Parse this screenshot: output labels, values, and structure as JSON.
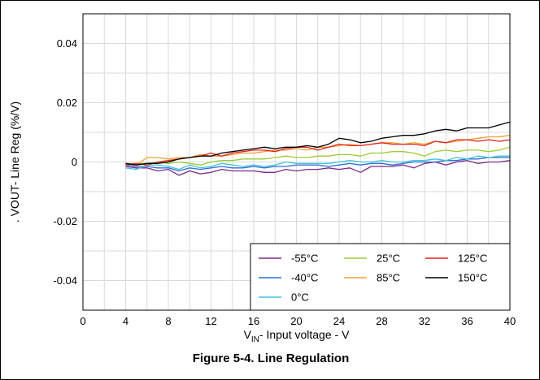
{
  "chart_data": {
    "type": "line",
    "title": "",
    "xlabel": {
      "main": "V",
      "sub": "IN",
      "rest": "- Input voltage - V"
    },
    "ylabel": ". VOUT- Line Reg (%/V)",
    "xlim": [
      0,
      40
    ],
    "ylim": [
      -0.05,
      0.05
    ],
    "xticks": [
      0,
      4,
      8,
      12,
      16,
      20,
      24,
      28,
      32,
      36,
      40
    ],
    "yticks": [
      -0.04,
      -0.02,
      0,
      0.02,
      0.04
    ],
    "ytick_labels": [
      "-0.04",
      "-0.02",
      "0",
      "0.02",
      "0.04"
    ],
    "grid": true,
    "legend_position": "bottom-right",
    "x": [
      4,
      5,
      6,
      7,
      8,
      9,
      10,
      11,
      12,
      13,
      14,
      15,
      16,
      17,
      18,
      19,
      20,
      21,
      22,
      23,
      24,
      25,
      26,
      27,
      28,
      29,
      30,
      31,
      32,
      33,
      34,
      35,
      36,
      37,
      38,
      39,
      40
    ],
    "series": [
      {
        "name": "-55°C",
        "color": "#7b2a8c",
        "values": [
          -0.0015,
          -0.002,
          -0.002,
          -0.003,
          -0.0025,
          -0.0045,
          -0.003,
          -0.004,
          -0.0035,
          -0.0025,
          -0.003,
          -0.003,
          -0.003,
          -0.0035,
          -0.0035,
          -0.0025,
          -0.003,
          -0.0025,
          -0.0025,
          -0.002,
          -0.0025,
          -0.002,
          -0.0035,
          -0.0015,
          -0.0015,
          -0.0015,
          -0.001,
          -0.002,
          -0.0005,
          0.0,
          -0.001,
          0.0,
          0.0005,
          -0.0005,
          0.0,
          0.0,
          0.0005
        ]
      },
      {
        "name": "-40°C",
        "color": "#2f6fd6",
        "values": [
          -0.001,
          -0.0015,
          -0.0015,
          -0.002,
          -0.002,
          -0.003,
          -0.002,
          -0.0025,
          -0.002,
          -0.0015,
          -0.002,
          -0.002,
          -0.0015,
          -0.002,
          -0.0015,
          -0.0015,
          -0.001,
          -0.001,
          -0.001,
          -0.0015,
          -0.001,
          -0.0005,
          -0.001,
          -0.0005,
          -0.0005,
          -0.001,
          -0.0005,
          0.0,
          0.0,
          0.0,
          0.0005,
          0.0005,
          0.001,
          0.001,
          0.0015,
          0.0015,
          0.0015
        ]
      },
      {
        "name": "0°C",
        "color": "#3fc2d9",
        "values": [
          -0.002,
          -0.0025,
          -0.001,
          -0.001,
          -0.0015,
          -0.0025,
          -0.001,
          -0.002,
          -0.0015,
          -0.0005,
          -0.001,
          -0.0015,
          -0.001,
          -0.0015,
          -0.001,
          0.0,
          -0.0005,
          -0.0005,
          -0.0005,
          -0.0005,
          0.0,
          0.0005,
          0.0,
          0.0,
          0.0005,
          0.0,
          0.0,
          0.0005,
          0.0005,
          0.001,
          0.0005,
          0.0015,
          0.001,
          0.002,
          0.0015,
          0.002,
          0.002
        ]
      },
      {
        "name": "25°C",
        "color": "#9acd32",
        "values": [
          -0.0005,
          -0.0005,
          -0.0005,
          0.0,
          -0.0005,
          0.0,
          -0.0005,
          -0.001,
          0.0,
          0.0005,
          0.0005,
          0.001,
          0.001,
          0.001,
          0.0015,
          0.002,
          0.0015,
          0.0015,
          0.002,
          0.002,
          0.0025,
          0.0025,
          0.002,
          0.003,
          0.003,
          0.0035,
          0.0035,
          0.003,
          0.002,
          0.0035,
          0.004,
          0.0035,
          0.004,
          0.004,
          0.0035,
          0.004,
          0.005
        ]
      },
      {
        "name": "85°C",
        "color": "#f0a030",
        "values": [
          -0.0005,
          -0.001,
          0.0015,
          0.0015,
          0.001,
          0.0015,
          0.0015,
          0.0025,
          0.002,
          0.002,
          0.0025,
          0.003,
          0.003,
          0.0035,
          0.004,
          0.004,
          0.0045,
          0.004,
          0.005,
          0.005,
          0.0055,
          0.006,
          0.0055,
          0.006,
          0.0065,
          0.0065,
          0.006,
          0.0065,
          0.006,
          0.007,
          0.0065,
          0.007,
          0.0075,
          0.008,
          0.0085,
          0.0085,
          0.009
        ]
      },
      {
        "name": "125°C",
        "color": "#e8201c",
        "values": [
          -0.001,
          -0.0005,
          -0.001,
          0.0,
          0.0005,
          0.001,
          0.0015,
          0.002,
          0.003,
          0.002,
          0.003,
          0.0035,
          0.004,
          0.004,
          0.0035,
          0.0045,
          0.005,
          0.005,
          0.004,
          0.005,
          0.006,
          0.0055,
          0.0055,
          0.006,
          0.0065,
          0.006,
          0.006,
          0.006,
          0.0055,
          0.007,
          0.0065,
          0.0075,
          0.0075,
          0.007,
          0.0075,
          0.007,
          0.0075
        ]
      },
      {
        "name": "150°C",
        "color": "#000000",
        "values": [
          -0.0005,
          -0.001,
          -0.0005,
          -0.0005,
          0.0,
          0.001,
          0.0015,
          0.002,
          0.002,
          0.003,
          0.0035,
          0.004,
          0.0045,
          0.005,
          0.0045,
          0.005,
          0.005,
          0.0055,
          0.005,
          0.006,
          0.008,
          0.0075,
          0.0065,
          0.007,
          0.008,
          0.0085,
          0.009,
          0.009,
          0.0095,
          0.0105,
          0.011,
          0.0105,
          0.0115,
          0.0115,
          0.0115,
          0.0125,
          0.0135
        ]
      }
    ]
  },
  "caption": "Figure 5-4. Line Regulation"
}
